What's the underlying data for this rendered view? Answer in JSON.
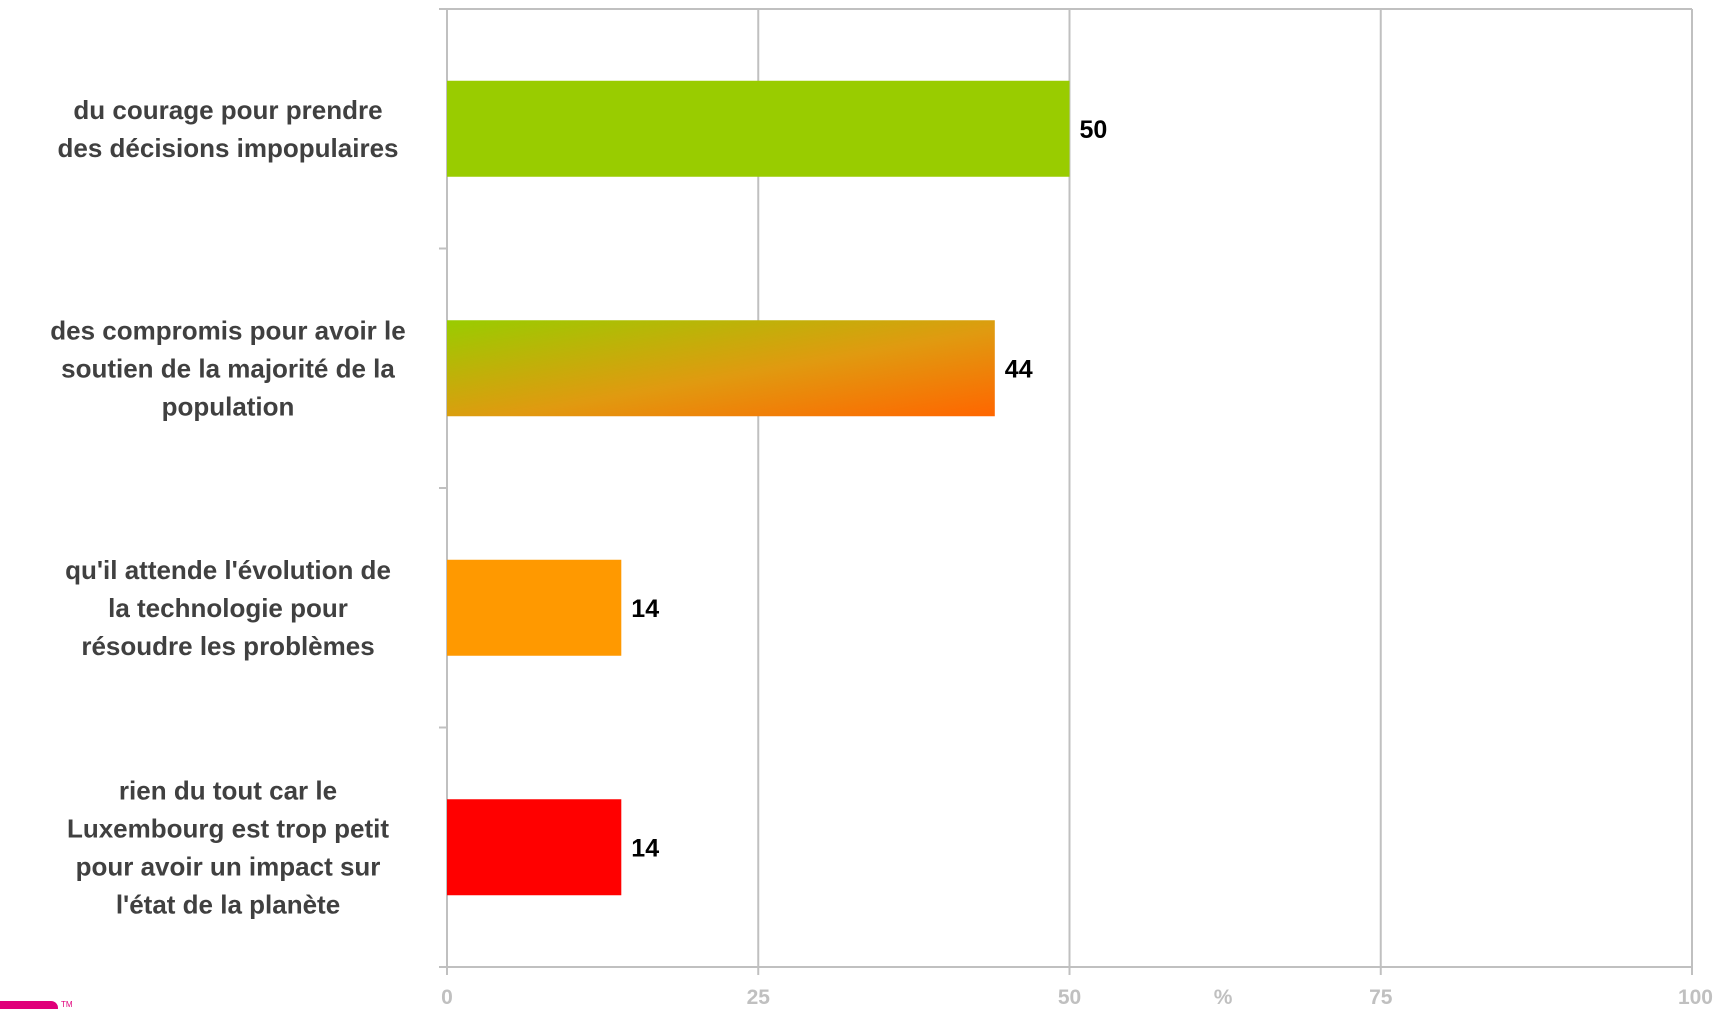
{
  "chart_data": {
    "type": "bar",
    "orientation": "horizontal",
    "categories": [
      [
        "du courage pour prendre",
        "des décisions impopulaires"
      ],
      [
        "des compromis pour avoir le",
        "soutien de la majorité de la",
        "population"
      ],
      [
        "qu'il attende l'évolution de",
        "la technologie pour",
        "résoudre les problèmes"
      ],
      [
        "rien du tout car le",
        "Luxembourg est trop petit",
        "pour avoir un impact sur",
        "l'état de la planète"
      ]
    ],
    "values": [
      50,
      44,
      14,
      14
    ],
    "value_labels": [
      "50",
      "44",
      "14",
      "14"
    ],
    "bar_fills": [
      "solid-green",
      "gradient-green-orange",
      "solid-orange",
      "solid-red"
    ],
    "colors": {
      "green": "#99cc00",
      "orange": "#ff9900",
      "dark_orange": "#ff6600",
      "red": "#ff0000",
      "grid": "#c0c0c0",
      "tick_text": "#c0c0c0",
      "category_text": "#404040",
      "value_text": "#000000"
    },
    "xlim": [
      0,
      100
    ],
    "x_ticks": [
      "0",
      "25",
      "50",
      "75",
      "100"
    ],
    "x_tick_values": [
      0,
      25,
      50,
      75,
      100
    ],
    "unit_label": "%",
    "title": "",
    "xlabel": "",
    "ylabel": "",
    "grid": true,
    "legend": "none"
  }
}
